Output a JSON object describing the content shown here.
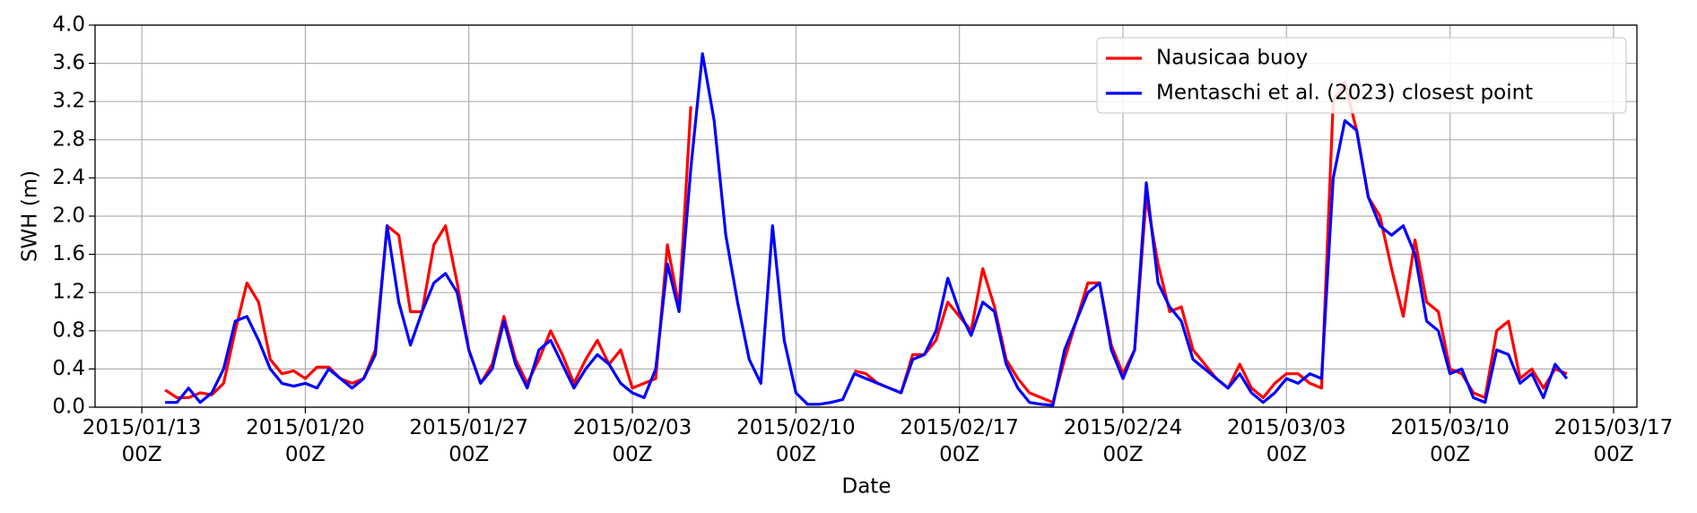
{
  "chart_data": {
    "type": "line",
    "xlabel": "Date",
    "ylabel": "SWH (m)",
    "xlim": [
      "2015-01-11T00:00Z",
      "2015-03-18T00:00Z"
    ],
    "xticks": [
      {
        "value": "2015-01-13T00:00Z",
        "label": "2015/01/13\n00Z"
      },
      {
        "value": "2015-01-20T00:00Z",
        "label": "2015/01/20\n00Z"
      },
      {
        "value": "2015-01-27T00:00Z",
        "label": "2015/01/27\n00Z"
      },
      {
        "value": "2015-02-03T00:00Z",
        "label": "2015/02/03\n00Z"
      },
      {
        "value": "2015-02-10T00:00Z",
        "label": "2015/02/10\n00Z"
      },
      {
        "value": "2015-02-17T00:00Z",
        "label": "2015/02/17\n00Z"
      },
      {
        "value": "2015-02-24T00:00Z",
        "label": "2015/02/24\n00Z"
      },
      {
        "value": "2015-03-03T00:00Z",
        "label": "2015/03/03\n00Z"
      },
      {
        "value": "2015-03-10T00:00Z",
        "label": "2015/03/10\n00Z"
      },
      {
        "value": "2015-03-17T00:00Z",
        "label": "2015/03/17\n00Z"
      }
    ],
    "ylim": [
      0,
      4
    ],
    "yticks": [
      {
        "value": 0,
        "label": "0.0"
      },
      0.4,
      0.8,
      1.2,
      1.6,
      {
        "value": 2,
        "label": "2.0"
      },
      2.4,
      2.8,
      3.2,
      3.6,
      {
        "value": 4,
        "label": "4.0"
      }
    ],
    "grid": true,
    "legend": "upper right",
    "x": [
      "2015-01-14T00:00Z",
      "2015-01-14T12:00Z",
      "2015-01-15T00:00Z",
      "2015-01-15T12:00Z",
      "2015-01-16T00:00Z",
      "2015-01-16T12:00Z",
      "2015-01-17T00:00Z",
      "2015-01-17T12:00Z",
      "2015-01-18T00:00Z",
      "2015-01-18T12:00Z",
      "2015-01-19T00:00Z",
      "2015-01-19T12:00Z",
      "2015-01-20T00:00Z",
      "2015-01-20T12:00Z",
      "2015-01-21T00:00Z",
      "2015-01-21T12:00Z",
      "2015-01-22T00:00Z",
      "2015-01-22T12:00Z",
      "2015-01-23T00:00Z",
      "2015-01-23T12:00Z",
      "2015-01-24T00:00Z",
      "2015-01-24T12:00Z",
      "2015-01-25T00:00Z",
      "2015-01-25T12:00Z",
      "2015-01-26T00:00Z",
      "2015-01-26T12:00Z",
      "2015-01-27T00:00Z",
      "2015-01-27T12:00Z",
      "2015-01-28T00:00Z",
      "2015-01-28T12:00Z",
      "2015-01-29T00:00Z",
      "2015-01-29T12:00Z",
      "2015-01-30T00:00Z",
      "2015-01-30T12:00Z",
      "2015-01-31T00:00Z",
      "2015-01-31T12:00Z",
      "2015-02-01T00:00Z",
      "2015-02-01T12:00Z",
      "2015-02-02T00:00Z",
      "2015-02-02T12:00Z",
      "2015-02-03T00:00Z",
      "2015-02-03T12:00Z",
      "2015-02-04T00:00Z",
      "2015-02-04T12:00Z",
      "2015-02-05T00:00Z",
      "2015-02-05T12:00Z",
      "2015-02-06T00:00Z",
      "2015-02-06T12:00Z",
      "2015-02-07T00:00Z",
      "2015-02-07T12:00Z",
      "2015-02-08T00:00Z",
      "2015-02-08T12:00Z",
      "2015-02-09T00:00Z",
      "2015-02-09T12:00Z",
      "2015-02-10T00:00Z",
      "2015-02-10T12:00Z",
      "2015-02-11T00:00Z",
      "2015-02-11T12:00Z",
      "2015-02-12T00:00Z",
      "2015-02-12T12:00Z",
      "2015-02-13T00:00Z",
      "2015-02-13T12:00Z",
      "2015-02-14T00:00Z",
      "2015-02-14T12:00Z",
      "2015-02-15T00:00Z",
      "2015-02-15T12:00Z",
      "2015-02-16T00:00Z",
      "2015-02-16T12:00Z",
      "2015-02-17T00:00Z",
      "2015-02-17T12:00Z",
      "2015-02-18T00:00Z",
      "2015-02-18T12:00Z",
      "2015-02-19T00:00Z",
      "2015-02-19T12:00Z",
      "2015-02-20T00:00Z",
      "2015-02-20T12:00Z",
      "2015-02-21T00:00Z",
      "2015-02-21T12:00Z",
      "2015-02-22T00:00Z",
      "2015-02-22T12:00Z",
      "2015-02-23T00:00Z",
      "2015-02-23T12:00Z",
      "2015-02-24T00:00Z",
      "2015-02-24T12:00Z",
      "2015-02-25T00:00Z",
      "2015-02-25T12:00Z",
      "2015-02-26T00:00Z",
      "2015-02-26T12:00Z",
      "2015-02-27T00:00Z",
      "2015-02-27T12:00Z",
      "2015-02-28T00:00Z",
      "2015-02-28T12:00Z",
      "2015-03-01T00:00Z",
      "2015-03-01T12:00Z",
      "2015-03-02T00:00Z",
      "2015-03-02T12:00Z",
      "2015-03-03T00:00Z",
      "2015-03-03T12:00Z",
      "2015-03-04T00:00Z",
      "2015-03-04T12:00Z",
      "2015-03-05T00:00Z",
      "2015-03-05T12:00Z",
      "2015-03-06T00:00Z",
      "2015-03-06T12:00Z",
      "2015-03-07T00:00Z",
      "2015-03-07T12:00Z",
      "2015-03-08T00:00Z",
      "2015-03-08T12:00Z",
      "2015-03-09T00:00Z",
      "2015-03-09T12:00Z",
      "2015-03-10T00:00Z",
      "2015-03-10T12:00Z",
      "2015-03-11T00:00Z",
      "2015-03-11T12:00Z",
      "2015-03-12T00:00Z",
      "2015-03-12T12:00Z",
      "2015-03-13T00:00Z",
      "2015-03-13T12:00Z",
      "2015-03-14T00:00Z",
      "2015-03-14T12:00Z",
      "2015-03-15T00:00Z"
    ],
    "series": [
      {
        "name": "Nausicaa buoy",
        "color": "#ff0000",
        "values": [
          0.18,
          0.1,
          0.1,
          0.15,
          0.13,
          0.25,
          0.8,
          1.3,
          1.1,
          0.5,
          0.35,
          0.38,
          0.3,
          0.42,
          0.42,
          0.3,
          0.25,
          0.3,
          0.6,
          1.9,
          1.8,
          1.0,
          1.0,
          1.7,
          1.9,
          1.3,
          0.6,
          0.25,
          0.45,
          0.95,
          0.5,
          0.25,
          0.5,
          0.8,
          0.55,
          0.25,
          0.5,
          0.7,
          0.45,
          0.6,
          0.2,
          0.25,
          0.3,
          1.7,
          1.05,
          3.15,
          null,
          null,
          null,
          null,
          null,
          null,
          null,
          null,
          null,
          null,
          null,
          null,
          null,
          0.38,
          0.35,
          0.25,
          0.2,
          0.15,
          0.55,
          0.55,
          0.7,
          1.1,
          0.95,
          0.8,
          1.45,
          1.05,
          0.5,
          0.3,
          0.15,
          0.1,
          0.05,
          0.5,
          0.9,
          1.3,
          1.3,
          0.65,
          0.35,
          0.6,
          2.2,
          1.5,
          1.0,
          1.05,
          0.6,
          0.45,
          0.3,
          0.2,
          0.45,
          0.2,
          0.1,
          0.25,
          0.35,
          0.35,
          0.25,
          0.2,
          3.2,
          3.4,
          2.9,
          2.2,
          2.0,
          1.45,
          0.95,
          1.75,
          1.1,
          1.0,
          0.4,
          0.35,
          0.15,
          0.1,
          0.8,
          0.9,
          0.3,
          0.4,
          0.2,
          0.4,
          0.35
        ]
      },
      {
        "name": "Mentaschi et al. (2023) closest point",
        "color": "#0000ff",
        "values": [
          0.05,
          0.05,
          0.2,
          0.05,
          0.15,
          0.4,
          0.9,
          0.95,
          0.7,
          0.4,
          0.25,
          0.22,
          0.25,
          0.2,
          0.4,
          0.3,
          0.2,
          0.3,
          0.55,
          1.9,
          1.1,
          0.65,
          1.0,
          1.3,
          1.4,
          1.2,
          0.6,
          0.25,
          0.4,
          0.9,
          0.45,
          0.2,
          0.6,
          0.7,
          0.45,
          0.2,
          0.4,
          0.55,
          0.45,
          0.25,
          0.15,
          0.1,
          0.4,
          1.5,
          1.0,
          2.5,
          3.7,
          3.0,
          1.8,
          1.1,
          0.5,
          0.25,
          1.9,
          0.7,
          0.15,
          0.03,
          0.03,
          0.05,
          0.08,
          0.35,
          0.3,
          0.25,
          0.2,
          0.15,
          0.5,
          0.55,
          0.8,
          1.35,
          1.0,
          0.75,
          1.1,
          1.0,
          0.45,
          0.2,
          0.05,
          0.03,
          0.02,
          0.6,
          0.9,
          1.2,
          1.3,
          0.6,
          0.3,
          0.6,
          2.35,
          1.3,
          1.05,
          0.9,
          0.5,
          0.4,
          0.3,
          0.2,
          0.35,
          0.15,
          0.05,
          0.15,
          0.3,
          0.25,
          0.35,
          0.3,
          2.4,
          3.0,
          2.9,
          2.2,
          1.9,
          1.8,
          1.9,
          1.6,
          0.9,
          0.8,
          0.35,
          0.4,
          0.1,
          0.05,
          0.6,
          0.55,
          0.25,
          0.35,
          0.1,
          0.45,
          0.3
        ]
      }
    ]
  }
}
